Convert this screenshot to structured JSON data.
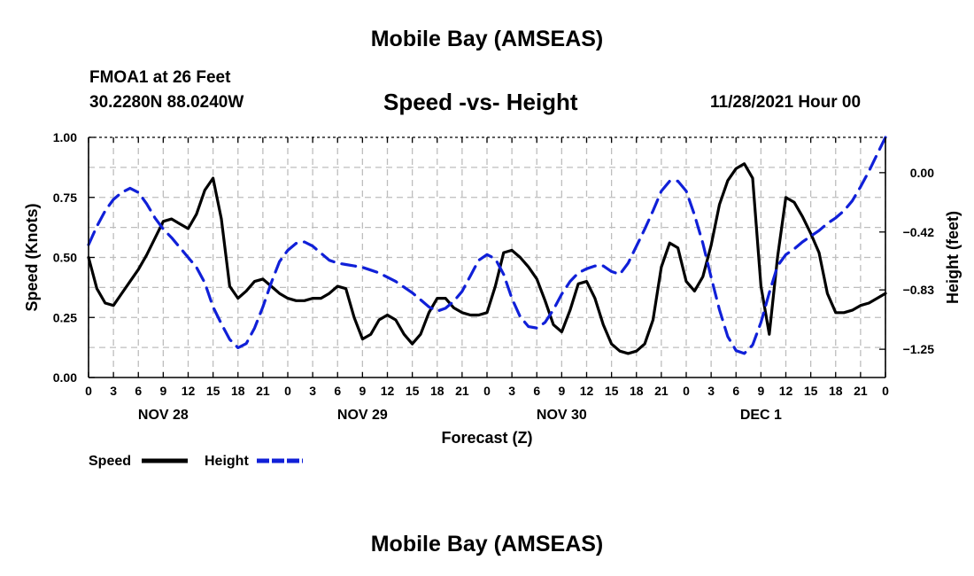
{
  "header": {
    "title": "Mobile Bay (AMSEAS)",
    "station": "FMOA1 at 26 Feet",
    "coords": "30.2280N  88.0240W",
    "datetime": "11/28/2021 Hour 00"
  },
  "footer": {
    "title": "Mobile Bay (AMSEAS)"
  },
  "chart_data": {
    "type": "line",
    "title": "Speed -vs- Height",
    "xlabel": "Forecast (Z)",
    "ylabel": "Speed (Knots)",
    "y2label": "Height (feet)",
    "xlim": [
      0,
      96
    ],
    "ylim": [
      0,
      1
    ],
    "y2lim": [
      -1.45,
      0.25
    ],
    "x_tick_labels": [
      "0",
      "3",
      "6",
      "9",
      "12",
      "15",
      "18",
      "21",
      "0",
      "3",
      "6",
      "9",
      "12",
      "15",
      "18",
      "21",
      "0",
      "3",
      "6",
      "9",
      "12",
      "15",
      "18",
      "21",
      "0",
      "3",
      "6",
      "9",
      "12",
      "15",
      "18",
      "21",
      "0"
    ],
    "x_tick_positions": [
      0,
      3,
      6,
      9,
      12,
      15,
      18,
      21,
      24,
      27,
      30,
      33,
      36,
      39,
      42,
      45,
      48,
      51,
      54,
      57,
      60,
      63,
      66,
      69,
      72,
      75,
      78,
      81,
      84,
      87,
      90,
      93,
      96
    ],
    "day_labels": [
      {
        "x": 9,
        "label": "NOV 28"
      },
      {
        "x": 33,
        "label": "NOV 29"
      },
      {
        "x": 57,
        "label": "NOV 30"
      },
      {
        "x": 81,
        "label": "DEC 1"
      }
    ],
    "y_ticks": [
      0,
      0.25,
      0.5,
      0.75,
      1.0
    ],
    "y_tick_labels": [
      "0.00",
      "0.25",
      "0.50",
      "0.75",
      "1.00"
    ],
    "y2_ticks": [
      0.0,
      -0.42,
      -0.83,
      -1.25
    ],
    "y2_tick_labels": [
      "0.00",
      "−0.42",
      "−0.83",
      "−1.25"
    ],
    "grid": true,
    "series": [
      {
        "name": "Speed",
        "axis": "left",
        "color": "#000000",
        "dash": "solid",
        "x": [
          0,
          1,
          2,
          3,
          4,
          5,
          6,
          7,
          8,
          9,
          10,
          11,
          12,
          13,
          14,
          15,
          16,
          17,
          18,
          19,
          20,
          21,
          22,
          23,
          24,
          25,
          26,
          27,
          28,
          29,
          30,
          31,
          32,
          33,
          34,
          35,
          36,
          37,
          38,
          39,
          40,
          41,
          42,
          43,
          44,
          45,
          46,
          47,
          48,
          49,
          50,
          51,
          52,
          53,
          54,
          55,
          56,
          57,
          58,
          59,
          60,
          61,
          62,
          63,
          64,
          65,
          66,
          67,
          68,
          69,
          70,
          71,
          72,
          73,
          74,
          75,
          76,
          77,
          78,
          79,
          80,
          81,
          82,
          83,
          84,
          85,
          86,
          87,
          88,
          89,
          90,
          91,
          92,
          93,
          94,
          95,
          96
        ],
        "values": [
          0.5,
          0.37,
          0.31,
          0.3,
          0.35,
          0.4,
          0.45,
          0.51,
          0.58,
          0.65,
          0.66,
          0.64,
          0.62,
          0.68,
          0.78,
          0.83,
          0.66,
          0.38,
          0.33,
          0.36,
          0.4,
          0.41,
          0.38,
          0.35,
          0.33,
          0.32,
          0.32,
          0.33,
          0.33,
          0.35,
          0.38,
          0.37,
          0.25,
          0.16,
          0.18,
          0.24,
          0.26,
          0.24,
          0.18,
          0.14,
          0.18,
          0.27,
          0.33,
          0.33,
          0.29,
          0.27,
          0.26,
          0.26,
          0.27,
          0.38,
          0.52,
          0.53,
          0.5,
          0.46,
          0.41,
          0.32,
          0.22,
          0.19,
          0.28,
          0.39,
          0.4,
          0.33,
          0.22,
          0.14,
          0.11,
          0.1,
          0.11,
          0.14,
          0.24,
          0.46,
          0.56,
          0.54,
          0.4,
          0.36,
          0.42,
          0.55,
          0.72,
          0.82,
          0.87,
          0.89,
          0.83,
          0.38,
          0.18,
          0.5,
          0.75,
          0.73,
          0.67,
          0.6,
          0.52,
          0.35,
          0.27,
          0.27,
          0.28,
          0.3,
          0.31,
          0.33,
          0.35
        ]
      },
      {
        "name": "Height",
        "axis": "right",
        "color": "#1020d8",
        "dash": "dashed",
        "x": [
          0,
          1,
          2,
          3,
          4,
          5,
          6,
          7,
          8,
          9,
          10,
          11,
          12,
          13,
          14,
          15,
          16,
          17,
          18,
          19,
          20,
          21,
          22,
          23,
          24,
          25,
          26,
          27,
          28,
          29,
          30,
          31,
          32,
          33,
          34,
          35,
          36,
          37,
          38,
          39,
          40,
          41,
          42,
          43,
          44,
          45,
          46,
          47,
          48,
          49,
          50,
          51,
          52,
          53,
          54,
          55,
          56,
          57,
          58,
          59,
          60,
          61,
          62,
          63,
          64,
          65,
          66,
          67,
          68,
          69,
          70,
          71,
          72,
          73,
          74,
          75,
          76,
          77,
          78,
          79,
          80,
          81,
          82,
          83,
          84,
          85,
          86,
          87,
          88,
          89,
          90,
          91,
          92,
          93,
          94,
          95,
          96
        ],
        "values": [
          -0.51,
          -0.38,
          -0.27,
          -0.19,
          -0.14,
          -0.11,
          -0.14,
          -0.22,
          -0.32,
          -0.4,
          -0.46,
          -0.53,
          -0.6,
          -0.67,
          -0.78,
          -0.95,
          -1.07,
          -1.18,
          -1.24,
          -1.21,
          -1.1,
          -0.95,
          -0.78,
          -0.63,
          -0.55,
          -0.5,
          -0.49,
          -0.52,
          -0.57,
          -0.62,
          -0.64,
          -0.65,
          -0.66,
          -0.67,
          -0.69,
          -0.71,
          -0.74,
          -0.77,
          -0.81,
          -0.85,
          -0.9,
          -0.95,
          -0.98,
          -0.96,
          -0.91,
          -0.84,
          -0.73,
          -0.62,
          -0.58,
          -0.61,
          -0.72,
          -0.89,
          -1.02,
          -1.09,
          -1.1,
          -1.06,
          -0.97,
          -0.86,
          -0.77,
          -0.71,
          -0.68,
          -0.66,
          -0.66,
          -0.7,
          -0.72,
          -0.64,
          -0.52,
          -0.4,
          -0.27,
          -0.13,
          -0.06,
          -0.06,
          -0.13,
          -0.3,
          -0.5,
          -0.74,
          -0.97,
          -1.16,
          -1.26,
          -1.28,
          -1.22,
          -1.06,
          -0.85,
          -0.66,
          -0.58,
          -0.54,
          -0.49,
          -0.45,
          -0.41,
          -0.36,
          -0.32,
          -0.27,
          -0.2,
          -0.1,
          0.01,
          0.13,
          0.25
        ]
      }
    ],
    "legend": {
      "position": "bottom-left",
      "items": [
        {
          "name": "Speed",
          "color": "#000000",
          "dash": "solid"
        },
        {
          "name": "Height",
          "color": "#1020d8",
          "dash": "dashed"
        }
      ]
    }
  }
}
